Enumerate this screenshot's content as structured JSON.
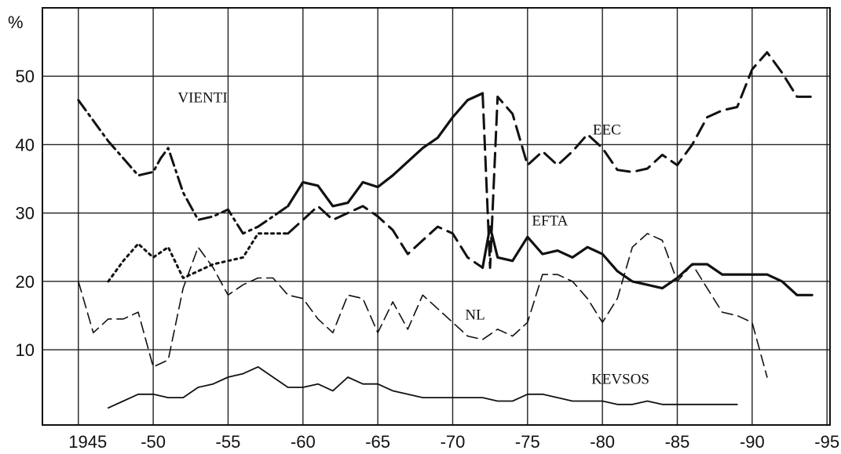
{
  "chart_data": {
    "type": "line",
    "title": "",
    "ylabel": "%",
    "xlabel": "",
    "xlim": [
      1942.6,
      1995.2
    ],
    "ylim": [
      -1,
      60
    ],
    "grid": true,
    "x_ticks": [
      {
        "value": 1945,
        "label": "1945"
      },
      {
        "value": 1950,
        "label": "-50"
      },
      {
        "value": 1955,
        "label": "-55"
      },
      {
        "value": 1960,
        "label": "-60"
      },
      {
        "value": 1965,
        "label": "-65"
      },
      {
        "value": 1970,
        "label": "-70"
      },
      {
        "value": 1975,
        "label": "-75"
      },
      {
        "value": 1980,
        "label": "-80"
      },
      {
        "value": 1985,
        "label": "-85"
      },
      {
        "value": 1990,
        "label": "-90"
      },
      {
        "value": 1995,
        "label": "-95"
      }
    ],
    "y_ticks": [
      {
        "value": 10,
        "label": "10"
      },
      {
        "value": 20,
        "label": "20"
      },
      {
        "value": 30,
        "label": "30"
      },
      {
        "value": 40,
        "label": "40"
      },
      {
        "value": 50,
        "label": "50"
      }
    ],
    "y_gridlines": [
      10,
      20,
      30,
      40,
      50
    ],
    "series": [
      {
        "name": "EEC",
        "style": "dashdot",
        "x": [
          1945,
          1946,
          1947,
          1948,
          1949,
          1950,
          1950.5,
          1951,
          1952,
          1953,
          1954,
          1955,
          1956,
          1957,
          1958,
          1959
        ],
        "y": [
          46.5,
          43.5,
          40.5,
          38,
          35.5,
          36,
          38,
          39.5,
          33,
          29,
          29.5,
          30.5,
          27,
          28,
          29.5,
          31
        ]
      },
      {
        "name": "EEC",
        "style": "solid",
        "x": [
          1959,
          1960,
          1961,
          1962,
          1963,
          1964,
          1965,
          1966,
          1967,
          1968,
          1969,
          1970,
          1971,
          1972
        ],
        "y": [
          31,
          34.5,
          34,
          31,
          31.5,
          34.5,
          33.8,
          35.5,
          37.5,
          39.5,
          41,
          44,
          46.5,
          47.5
        ]
      },
      {
        "name": "EEC",
        "style": "dashed",
        "x": [
          1972,
          1972.5,
          1973,
          1974,
          1975,
          1976,
          1977,
          1978,
          1979,
          1980,
          1981,
          1982,
          1983,
          1984,
          1985,
          1986,
          1987,
          1988,
          1989,
          1990,
          1991,
          1992,
          1993,
          1994
        ],
        "y": [
          47.5,
          22,
          47,
          44.5,
          37,
          39,
          37,
          39,
          41.5,
          39.5,
          36.3,
          36,
          36.5,
          38.5,
          37,
          40,
          44,
          45,
          45.5,
          51,
          53.5,
          50.5,
          47,
          47
        ]
      },
      {
        "name": "EFTA",
        "style": "dotted",
        "x": [
          1947,
          1948,
          1949,
          1950,
          1951,
          1952,
          1953,
          1954,
          1955,
          1956,
          1957,
          1958,
          1959
        ],
        "y": [
          20,
          23,
          25.5,
          23.5,
          25,
          20.5,
          21.5,
          22.5,
          23,
          23.5,
          27,
          27,
          27
        ]
      },
      {
        "name": "EFTA",
        "style": "dashed",
        "x": [
          1959,
          1960,
          1961,
          1962,
          1963,
          1964,
          1965,
          1966,
          1967,
          1968,
          1969,
          1970,
          1971,
          1972
        ],
        "y": [
          27,
          29,
          31,
          29,
          30,
          31,
          29.5,
          27.5,
          24,
          26,
          28,
          27,
          23.5,
          22
        ]
      },
      {
        "name": "EFTA",
        "style": "solid",
        "x": [
          1972,
          1972.5,
          1973,
          1974,
          1975,
          1976,
          1977,
          1978,
          1979,
          1980,
          1981,
          1982,
          1983,
          1984,
          1985,
          1986,
          1987,
          1988,
          1989,
          1990,
          1991,
          1992,
          1993,
          1994
        ],
        "y": [
          22,
          28,
          23.5,
          23,
          26.5,
          24,
          24.5,
          23.5,
          25,
          24,
          21.5,
          20,
          19.5,
          19,
          20.5,
          22.5,
          22.5,
          21,
          21,
          21,
          21,
          20,
          18,
          18
        ]
      },
      {
        "name": "NL",
        "style": "dashed-thin",
        "x": [
          1945,
          1946,
          1947,
          1948,
          1949,
          1950,
          1951,
          1952,
          1953,
          1954,
          1955,
          1956,
          1957,
          1958,
          1959,
          1960,
          1961,
          1962,
          1963,
          1964,
          1965,
          1966,
          1967,
          1968,
          1969,
          1970,
          1971,
          1972,
          1973,
          1974,
          1975,
          1976,
          1977,
          1978,
          1979,
          1980,
          1981,
          1982,
          1983,
          1984,
          1985,
          1986,
          1987,
          1988,
          1989,
          1990,
          1991
        ],
        "y": [
          20,
          12.5,
          14.5,
          14.5,
          15.5,
          7.5,
          8.5,
          19,
          25,
          22,
          18,
          19.5,
          20.5,
          20.5,
          18,
          17.5,
          14.5,
          12.5,
          18,
          17.5,
          12.5,
          17,
          13,
          18,
          16,
          14,
          12,
          11.5,
          13,
          12,
          14,
          21,
          21,
          20,
          17.5,
          14,
          17.5,
          25,
          27,
          26,
          20,
          22.5,
          19,
          15.5,
          15,
          14,
          6
        ]
      },
      {
        "name": "KEVSOS",
        "style": "solid-thin",
        "x": [
          1947,
          1948,
          1949,
          1950,
          1951,
          1952,
          1953,
          1954,
          1955,
          1956,
          1957,
          1958,
          1959,
          1960,
          1961,
          1962,
          1963,
          1964,
          1965,
          1966,
          1967,
          1968,
          1969,
          1970,
          1971,
          1972,
          1973,
          1974,
          1975,
          1976,
          1977,
          1978,
          1979,
          1980,
          1981,
          1982,
          1983,
          1984,
          1985,
          1986,
          1987,
          1988,
          1989
        ],
        "y": [
          1.5,
          2.5,
          3.5,
          3.5,
          3,
          3,
          4.5,
          5,
          6,
          6.5,
          7.5,
          6,
          4.5,
          4.5,
          5,
          4,
          6,
          5,
          5,
          4,
          3.5,
          3,
          3,
          3,
          3,
          3,
          2.5,
          2.5,
          3.5,
          3.5,
          3,
          2.5,
          2.5,
          2.5,
          2,
          2,
          2.5,
          2,
          2,
          2,
          2,
          2,
          2
        ]
      }
    ],
    "annotations": [
      {
        "text": "VIENTI",
        "x": 1953.3,
        "y": 47
      },
      {
        "text": "EEC",
        "x": 1980.3,
        "y": 42.3
      },
      {
        "text": "EFTA",
        "x": 1976.5,
        "y": 29
      },
      {
        "text": "NL",
        "x": 1971.5,
        "y": 15.2
      },
      {
        "text": "KEVSOS",
        "x": 1981.2,
        "y": 5.8
      }
    ]
  }
}
